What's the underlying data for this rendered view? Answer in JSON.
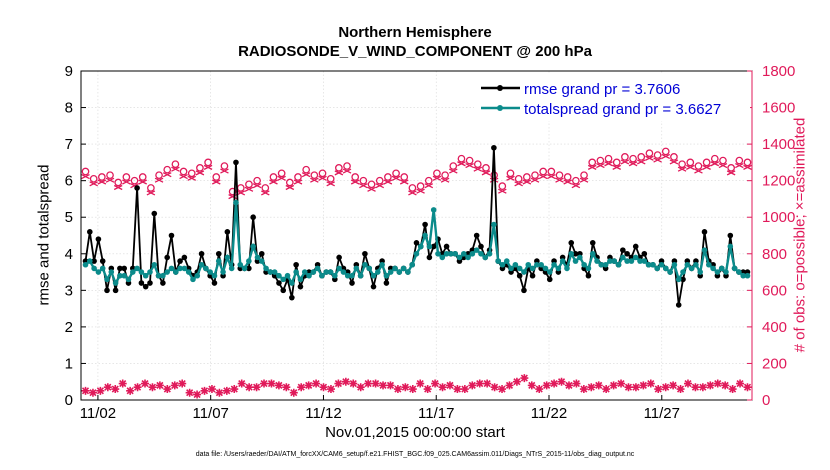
{
  "chart_data": {
    "type": "line",
    "title": "Northern Hemisphere",
    "subtitle": "RADIOSONDE_V_WIND_COMPONENT @ 200 hPa",
    "xlabel": "Nov.01,2015 00:00:00 start",
    "ylabel": "rmse and totalspread",
    "ylabel_right": "# of obs: o=possible; ×=assimilated",
    "footer": "data file: /Users/raeder/DAI/ATM_forcXX/CAM6_setup/f.e21.FHIST_BGC.f09_025.CAM6assim.011/Diags_NTrS_2015-11/obs_diag_output.nc",
    "x_ticks": [
      {
        "day": 2,
        "label": "11/02"
      },
      {
        "day": 7,
        "label": "11/07"
      },
      {
        "day": 12,
        "label": "11/12"
      },
      {
        "day": 17,
        "label": "11/17"
      },
      {
        "day": 22,
        "label": "11/22"
      },
      {
        "day": 27,
        "label": "11/27"
      }
    ],
    "xlim": [
      1.25,
      31.0
    ],
    "ylim": [
      0,
      9
    ],
    "ylim_right": [
      0,
      1800
    ],
    "y_ticks": [
      "0",
      "1",
      "2",
      "3",
      "4",
      "5",
      "6",
      "7",
      "8",
      "9"
    ],
    "y_ticks_right": [
      "0",
      "200",
      "400",
      "600",
      "800",
      "1000",
      "1200",
      "1400",
      "1600",
      "1800"
    ],
    "grid": true,
    "legend_position": "top-right",
    "colors": {
      "rmse": "#000000",
      "spread": "#0b8b8b",
      "obs": "#e01a5a"
    },
    "series": [
      {
        "name": "rmse grand pr = 3.7606",
        "values": [
          3.8,
          4.6,
          3.8,
          4.4,
          3.8,
          3.0,
          3.6,
          3.0,
          3.6,
          3.6,
          3.2,
          3.6,
          5.8,
          3.2,
          3.1,
          3.2,
          5.1,
          3.4,
          3.2,
          3.9,
          4.5,
          3.5,
          3.8,
          3.9,
          3.6,
          3.4,
          3.5,
          4.0,
          3.6,
          3.4,
          3.2,
          4.0,
          3.4,
          4.6,
          3.7,
          6.5,
          3.6,
          3.6,
          3.6,
          5.0,
          3.8,
          4.0,
          3.5,
          3.5,
          3.4,
          3.2,
          3.0,
          3.3,
          2.8,
          3.7,
          3.1,
          3.4,
          3.5,
          3.5,
          3.7,
          3.4,
          3.5,
          3.5,
          3.3,
          3.9,
          3.6,
          3.5,
          3.2,
          3.7,
          3.4,
          4.0,
          3.6,
          3.1,
          3.6,
          3.8,
          3.2,
          3.6,
          3.6,
          3.5,
          3.6,
          3.5,
          3.7,
          4.3,
          4.2,
          4.8,
          3.9,
          4.2,
          4.4,
          4.0,
          4.2,
          4.0,
          4.0,
          3.8,
          3.9,
          4.0,
          4.1,
          4.5,
          4.2,
          3.9,
          4.1,
          6.9,
          3.8,
          3.6,
          3.7,
          3.5,
          3.6,
          3.4,
          3.0,
          3.6,
          3.4,
          3.8,
          3.6,
          3.5,
          3.3,
          3.8,
          3.5,
          3.9,
          3.7,
          4.3,
          4.0,
          4.0,
          3.6,
          3.4,
          4.3,
          3.9,
          3.7,
          3.6,
          3.9,
          3.8,
          3.7,
          4.1,
          4.0,
          3.9,
          4.2,
          3.9,
          4.0,
          3.7,
          3.7,
          3.6,
          3.8,
          3.6,
          3.5,
          3.8,
          2.6,
          3.3,
          3.8,
          3.6,
          3.8,
          3.4,
          4.6,
          3.8,
          3.7,
          3.4,
          3.6,
          3.4,
          4.5,
          3.6,
          3.5,
          3.5,
          3.5
        ]
      },
      {
        "name": "totalspread grand pr = 3.6627",
        "values": [
          3.7,
          3.8,
          3.6,
          3.5,
          3.6,
          3.3,
          3.5,
          3.2,
          3.4,
          3.4,
          3.3,
          3.5,
          3.6,
          3.5,
          3.4,
          3.5,
          3.7,
          3.4,
          3.4,
          3.5,
          3.6,
          3.5,
          3.6,
          3.6,
          3.5,
          3.3,
          3.4,
          3.7,
          3.6,
          3.5,
          3.4,
          3.8,
          3.5,
          3.9,
          3.6,
          5.4,
          3.7,
          3.6,
          3.8,
          4.2,
          3.9,
          3.8,
          3.6,
          3.5,
          3.5,
          3.4,
          3.3,
          3.4,
          3.2,
          3.5,
          3.3,
          3.5,
          3.4,
          3.5,
          3.6,
          3.4,
          3.5,
          3.5,
          3.4,
          3.6,
          3.5,
          3.4,
          3.4,
          3.6,
          3.4,
          3.7,
          3.6,
          3.4,
          3.5,
          3.7,
          3.4,
          3.5,
          3.6,
          3.5,
          3.6,
          3.5,
          3.7,
          4.0,
          4.2,
          4.5,
          4.2,
          5.2,
          4.0,
          3.9,
          4.0,
          4.0,
          4.0,
          3.9,
          4.0,
          3.9,
          4.0,
          4.1,
          4.0,
          3.9,
          4.0,
          4.8,
          3.8,
          3.7,
          3.8,
          3.6,
          3.7,
          3.6,
          3.5,
          3.7,
          3.6,
          3.7,
          3.7,
          3.6,
          3.5,
          3.7,
          3.6,
          3.8,
          3.6,
          4.0,
          3.8,
          3.9,
          3.7,
          3.6,
          4.0,
          3.8,
          3.7,
          3.7,
          3.8,
          3.8,
          3.7,
          3.9,
          3.8,
          3.8,
          3.9,
          3.8,
          3.8,
          3.7,
          3.7,
          3.6,
          3.7,
          3.6,
          3.5,
          3.7,
          3.3,
          3.5,
          3.7,
          3.6,
          3.7,
          3.5,
          4.1,
          3.7,
          3.6,
          3.5,
          3.6,
          3.5,
          4.2,
          3.6,
          3.5,
          3.4,
          3.4
        ]
      },
      {
        "name": "obs possible",
        "values": [
          1250,
          1210,
          1220,
          1230,
          1190,
          1220,
          1200,
          1220,
          1160,
          1230,
          1260,
          1290,
          1250,
          1240,
          1270,
          1300,
          1220,
          1280,
          1140,
          1160,
          1180,
          1200,
          1160,
          1220,
          1240,
          1190,
          1220,
          1260,
          1230,
          1240,
          1210,
          1270,
          1280,
          1220,
          1200,
          1180,
          1200,
          1220,
          1240,
          1220,
          1160,
          1170,
          1200,
          1240,
          1230,
          1280,
          1320,
          1310,
          1290,
          1270,
          1230,
          1170,
          1240,
          1210,
          1220,
          1230,
          1250,
          1250,
          1230,
          1220,
          1200,
          1230,
          1300,
          1310,
          1320,
          1300,
          1330,
          1320,
          1330,
          1350,
          1340,
          1360,
          1330,
          1290,
          1300,
          1280,
          1300,
          1320,
          1310,
          1270,
          1310,
          1300
        ]
      },
      {
        "name": "obs assimilated",
        "values": [
          50,
          40,
          50,
          70,
          60,
          90,
          50,
          70,
          90,
          70,
          80,
          60,
          80,
          90,
          40,
          30,
          50,
          60,
          40,
          50,
          60,
          90,
          70,
          70,
          90,
          90,
          80,
          70,
          40,
          70,
          80,
          90,
          70,
          60,
          90,
          100,
          90,
          70,
          90,
          90,
          80,
          80,
          60,
          70,
          60,
          90,
          60,
          90,
          70,
          80,
          60,
          60,
          80,
          90,
          90,
          70,
          60,
          80,
          100,
          120,
          80,
          60,
          80,
          90,
          100,
          80,
          90,
          60,
          70,
          80,
          60,
          80,
          90,
          70,
          70,
          80,
          90,
          60,
          70,
          80,
          60,
          90,
          70,
          70,
          80,
          90,
          80,
          60,
          90,
          70
        ]
      }
    ]
  }
}
